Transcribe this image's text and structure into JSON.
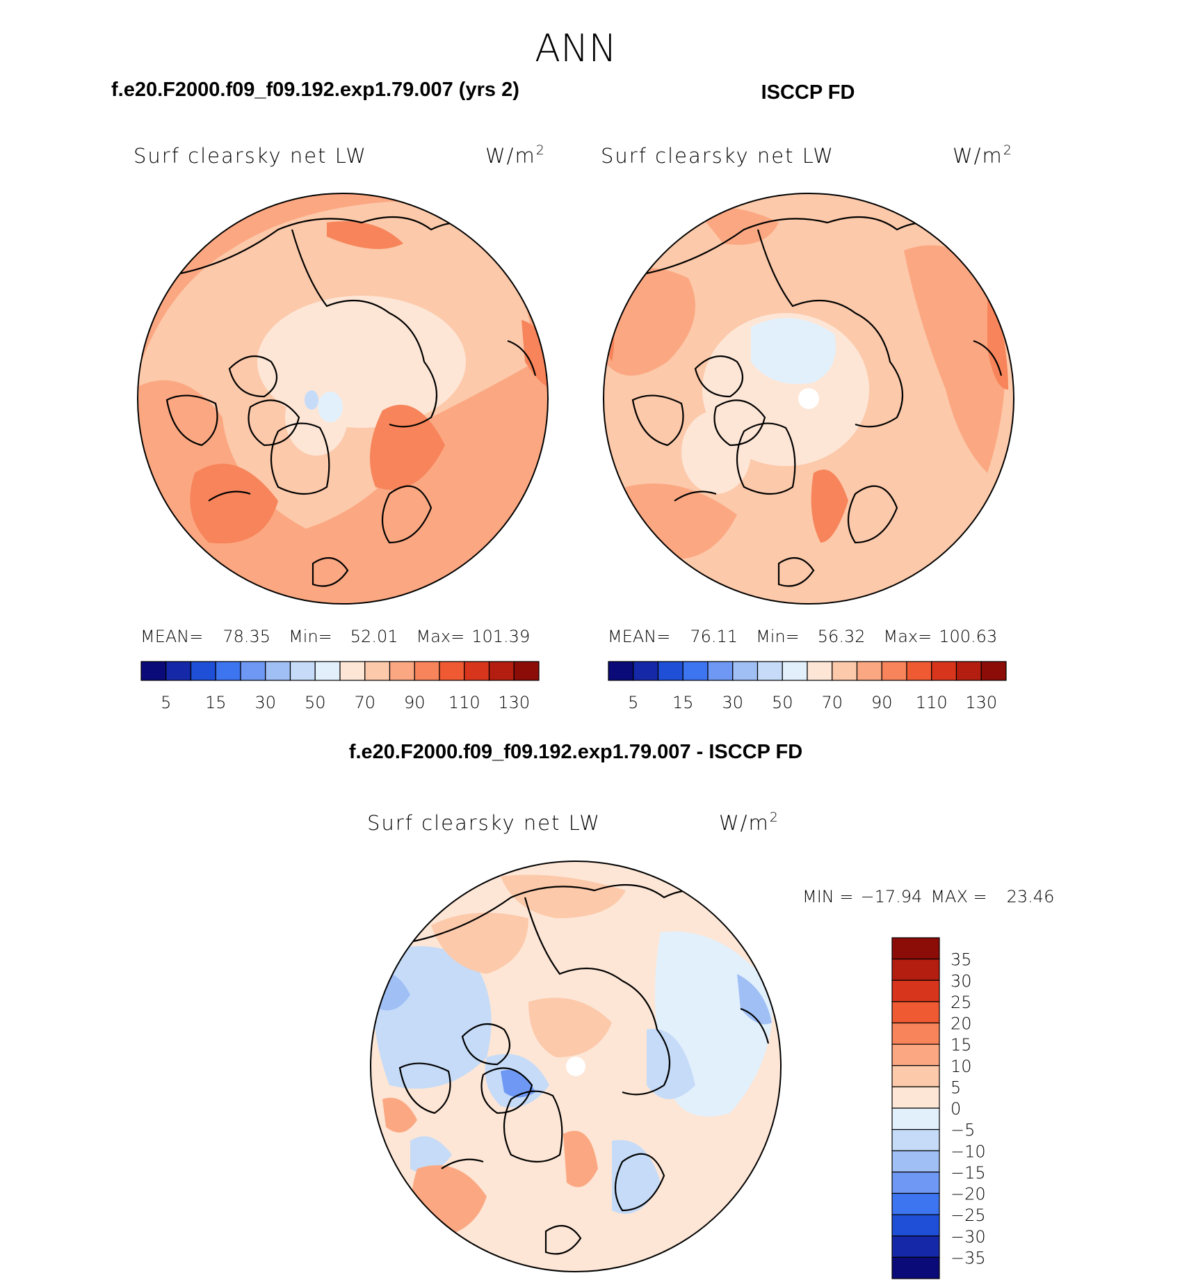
{
  "figure": {
    "season": "ANN"
  },
  "chart_data": [
    {
      "type": "heatmap",
      "projection": "north polar stereographic",
      "case_title": "f.e20.F2000.f09_f09.192.exp1.79.007 (yrs 2)",
      "variable": "Surf clearsky net LW",
      "units": "W/m",
      "units_exp": "2",
      "stats": {
        "mean_label": "MEAN=",
        "mean": "78.35",
        "min_label": "Min=",
        "min": "52.01",
        "max_label": "Max=",
        "max": "101.39"
      },
      "colorbar": {
        "orientation": "horizontal",
        "levels": [
          5,
          10,
          15,
          20,
          30,
          40,
          50,
          60,
          70,
          80,
          90,
          100,
          110,
          120,
          130
        ],
        "labels": [
          "5",
          "15",
          "30",
          "50",
          "70",
          "90",
          "110",
          "130"
        ],
        "colors": [
          "#0a0a78",
          "#1428a8",
          "#1f4fd6",
          "#3d74ef",
          "#6e98f3",
          "#9fbff5",
          "#c5dbf8",
          "#e2f0fc",
          "#fde6d6",
          "#fcc9aa",
          "#fba882",
          "#f7845a",
          "#ef5a32",
          "#d8361c",
          "#b41e10",
          "#8c0c08"
        ]
      },
      "field_summary": "warm 70–100 W/m2 over oceans and continents, weakest (60–70) over central Arctic ice and Greenland"
    },
    {
      "type": "heatmap",
      "projection": "north polar stereographic",
      "case_title": "ISCCP FD",
      "variable": "Surf clearsky net LW",
      "units": "W/m",
      "units_exp": "2",
      "stats": {
        "mean_label": "MEAN=",
        "mean": "76.11",
        "min_label": "Min=",
        "min": "56.32",
        "max_label": "Max=",
        "max": "100.63"
      },
      "colorbar": {
        "orientation": "horizontal",
        "levels": [
          5,
          10,
          15,
          20,
          30,
          40,
          50,
          60,
          70,
          80,
          90,
          100,
          110,
          120,
          130
        ],
        "labels": [
          "5",
          "15",
          "30",
          "50",
          "70",
          "90",
          "110",
          "130"
        ],
        "colors": [
          "#0a0a78",
          "#1428a8",
          "#1f4fd6",
          "#3d74ef",
          "#6e98f3",
          "#9fbff5",
          "#c5dbf8",
          "#e2f0fc",
          "#fde6d6",
          "#fcc9aa",
          "#fba882",
          "#f7845a",
          "#ef5a32",
          "#d8361c",
          "#b41e10",
          "#8c0c08"
        ]
      },
      "field_summary": "50–70 W/m2 patch over central Arctic, 80–100 over Pacific and Siberian margins"
    },
    {
      "type": "heatmap",
      "projection": "north polar stereographic",
      "case_title": "f.e20.F2000.f09_f09.192.exp1.79.007 - ISCCP FD",
      "variable": "Surf clearsky net LW",
      "units": "W/m",
      "units_exp": "2",
      "stats": {
        "min_label": "MIN =",
        "min": "−17.94",
        "max_label": "MAX =",
        "max": "23.46"
      },
      "colorbar": {
        "orientation": "vertical",
        "levels": [
          -35,
          -30,
          -25,
          -20,
          -15,
          -10,
          -5,
          0,
          5,
          10,
          15,
          20,
          25,
          30,
          35
        ],
        "labels": [
          "35",
          "30",
          "25",
          "20",
          "15",
          "10",
          "5",
          "0",
          "−5",
          "−10",
          "−15",
          "−20",
          "−25",
          "−30",
          "−35"
        ],
        "colors": [
          "#8c0c08",
          "#b41e10",
          "#d8361c",
          "#ef5a32",
          "#f7845a",
          "#fba882",
          "#fcc9aa",
          "#fde6d6",
          "#e2f0fc",
          "#c5dbf8",
          "#9fbff5",
          "#6e98f3",
          "#3d74ef",
          "#1f4fd6",
          "#1428a8",
          "#0a0a78"
        ]
      },
      "field_summary": "positive 5–15 over central Arctic and North Atlantic, negative -5 to -15 over Canada, Siberia and Canadian Archipelago"
    }
  ]
}
